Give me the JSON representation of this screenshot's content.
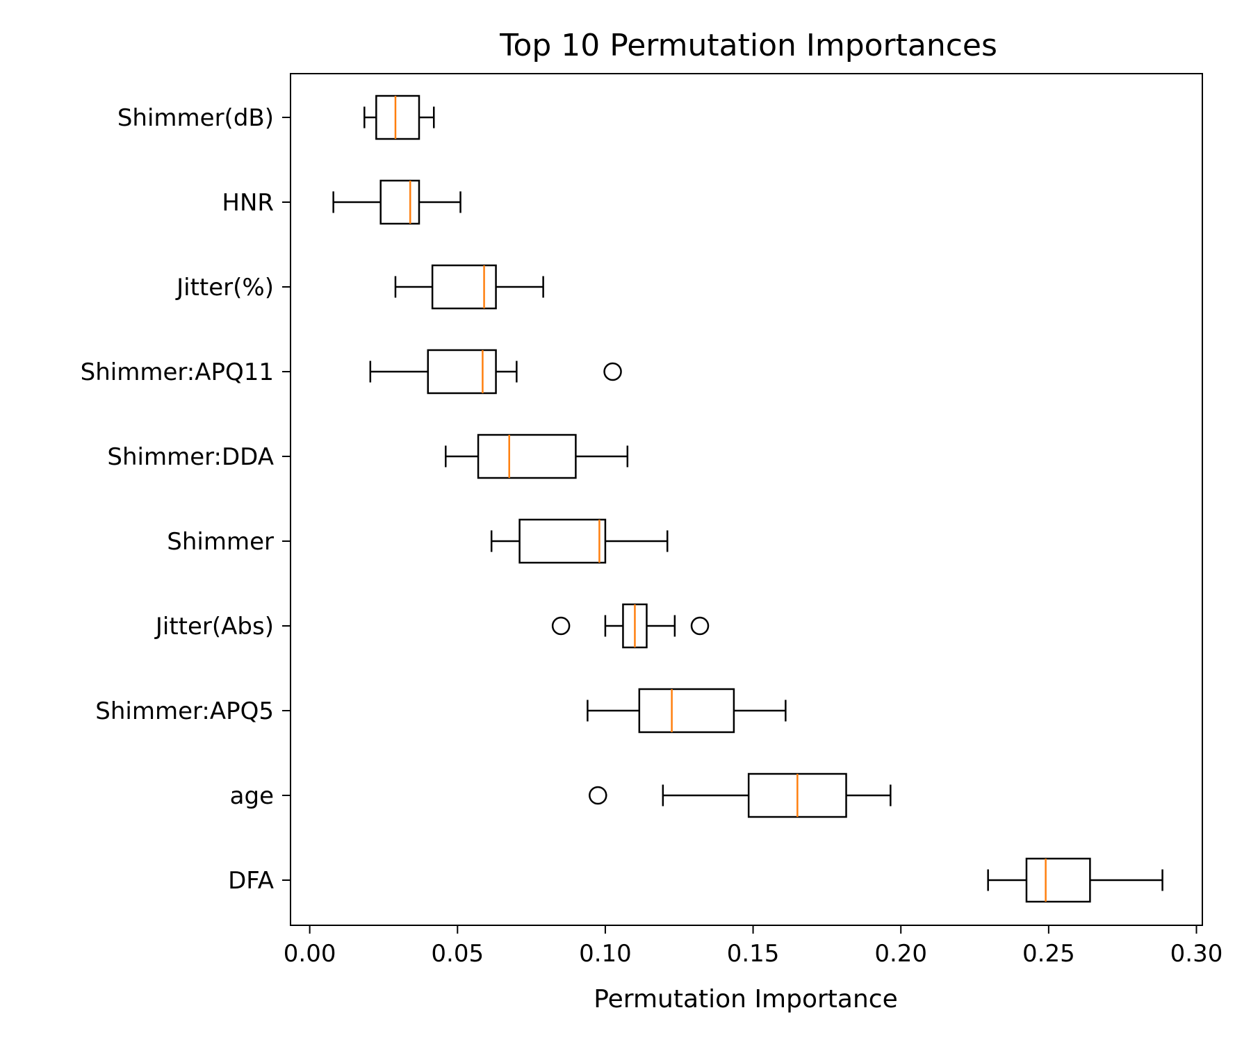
{
  "chart_data": {
    "type": "boxplot",
    "orientation": "horizontal",
    "title": "Top 10 Permutation Importances",
    "xlabel": "Permutation Importance",
    "ylabel": "",
    "xlim": [
      -0.0065,
      0.302
    ],
    "xticks": [
      0.0,
      0.05,
      0.1,
      0.15,
      0.2,
      0.25,
      0.3
    ],
    "xtick_labels": [
      "0.00",
      "0.05",
      "0.10",
      "0.15",
      "0.20",
      "0.25",
      "0.30"
    ],
    "grid": false,
    "legend": false,
    "colors": {
      "box": "#000000",
      "median": "#ff7f0e",
      "flier": "#000000"
    },
    "categories": [
      "Shimmer(dB)",
      "HNR",
      "Jitter(%)",
      "Shimmer:APQ11",
      "Shimmer:DDA",
      "Shimmer",
      "Jitter(Abs)",
      "Shimmer:APQ5",
      "age",
      "DFA"
    ],
    "boxes": [
      {
        "label": "Shimmer(dB)",
        "whisker_low": 0.0185,
        "q1": 0.0225,
        "median": 0.029,
        "q3": 0.037,
        "whisker_high": 0.042,
        "fliers": []
      },
      {
        "label": "HNR",
        "whisker_low": 0.008,
        "q1": 0.024,
        "median": 0.034,
        "q3": 0.037,
        "whisker_high": 0.051,
        "fliers": []
      },
      {
        "label": "Jitter(%)",
        "whisker_low": 0.029,
        "q1": 0.0415,
        "median": 0.059,
        "q3": 0.063,
        "whisker_high": 0.079,
        "fliers": []
      },
      {
        "label": "Shimmer:APQ11",
        "whisker_low": 0.0205,
        "q1": 0.04,
        "median": 0.0585,
        "q3": 0.063,
        "whisker_high": 0.07,
        "fliers": [
          0.1025
        ]
      },
      {
        "label": "Shimmer:DDA",
        "whisker_low": 0.046,
        "q1": 0.057,
        "median": 0.0675,
        "q3": 0.09,
        "whisker_high": 0.1075,
        "fliers": []
      },
      {
        "label": "Shimmer",
        "whisker_low": 0.0615,
        "q1": 0.071,
        "median": 0.098,
        "q3": 0.1,
        "whisker_high": 0.121,
        "fliers": []
      },
      {
        "label": "Jitter(Abs)",
        "whisker_low": 0.1,
        "q1": 0.106,
        "median": 0.11,
        "q3": 0.114,
        "whisker_high": 0.1235,
        "fliers": [
          0.085,
          0.132
        ]
      },
      {
        "label": "Shimmer:APQ5",
        "whisker_low": 0.094,
        "q1": 0.1115,
        "median": 0.1225,
        "q3": 0.1435,
        "whisker_high": 0.161,
        "fliers": []
      },
      {
        "label": "age",
        "whisker_low": 0.1195,
        "q1": 0.1485,
        "median": 0.165,
        "q3": 0.1815,
        "whisker_high": 0.1965,
        "fliers": [
          0.0975
        ]
      },
      {
        "label": "DFA",
        "whisker_low": 0.2295,
        "q1": 0.2425,
        "median": 0.249,
        "q3": 0.264,
        "whisker_high": 0.2885,
        "fliers": []
      }
    ]
  }
}
